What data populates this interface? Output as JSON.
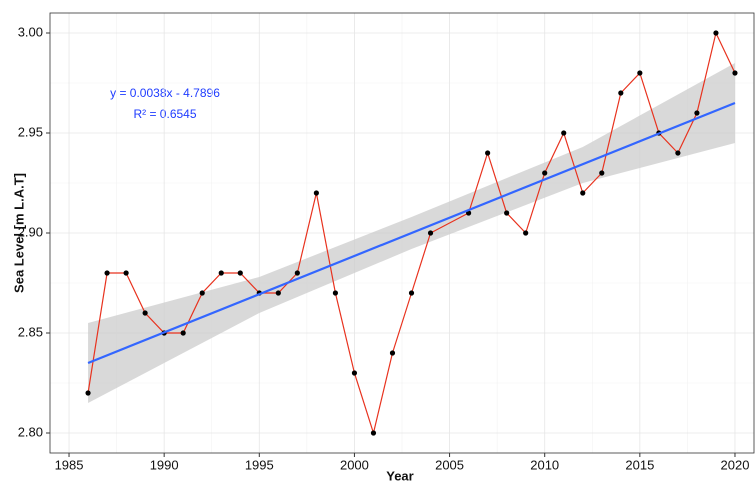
{
  "chart_data": {
    "type": "line",
    "x_label": "Year",
    "y_label": "Sea Level [m L.A.T]",
    "annotations": [
      "y = 0.0038x - 4.7896",
      "R² = 0.6545"
    ],
    "series": [
      {
        "color": "#e8321e",
        "marker_color": "#000000",
        "x": [
          1986,
          1987,
          1988,
          1989,
          1990,
          1991,
          1992,
          1993,
          1994,
          1995,
          1996,
          1997,
          1998,
          1999,
          2000,
          2001,
          2002,
          2003,
          2004,
          2006,
          2007,
          2008,
          2009,
          2010,
          2011,
          2012,
          2013,
          2014,
          2015,
          2016,
          2017,
          2018,
          2019,
          2020
        ],
        "values": [
          2.82,
          2.88,
          2.88,
          2.86,
          2.85,
          2.85,
          2.87,
          2.88,
          2.88,
          2.87,
          2.87,
          2.88,
          2.92,
          2.87,
          2.83,
          2.8,
          2.84,
          2.87,
          2.9,
          2.91,
          2.94,
          2.91,
          2.9,
          2.93,
          2.95,
          2.92,
          2.93,
          2.97,
          2.98,
          2.95,
          2.94,
          2.96,
          3.0,
          2.98
        ]
      }
    ],
    "trend": {
      "color": "#3366ff",
      "x": [
        1986,
        2020
      ],
      "values": [
        2.835,
        2.965
      ]
    },
    "band": {
      "color": "#cccccc",
      "x": [
        1986,
        1995,
        2003,
        2012,
        2020
      ],
      "lower": [
        2.815,
        2.86,
        2.892,
        2.925,
        2.945
      ],
      "upper": [
        2.855,
        2.878,
        2.908,
        2.943,
        2.985
      ]
    },
    "xlim": [
      1984,
      2021
    ],
    "ylim": [
      2.79,
      3.01
    ],
    "xticks": [
      1985,
      1990,
      1995,
      2000,
      2005,
      2010,
      2015,
      2020
    ],
    "yticks": [
      {
        "value": 2.8,
        "label": "2.80"
      },
      2.85,
      {
        "value": 2.9,
        "label": "2.90"
      },
      2.95,
      {
        "value": 3.0,
        "label": "3.00"
      }
    ],
    "grid": true
  }
}
